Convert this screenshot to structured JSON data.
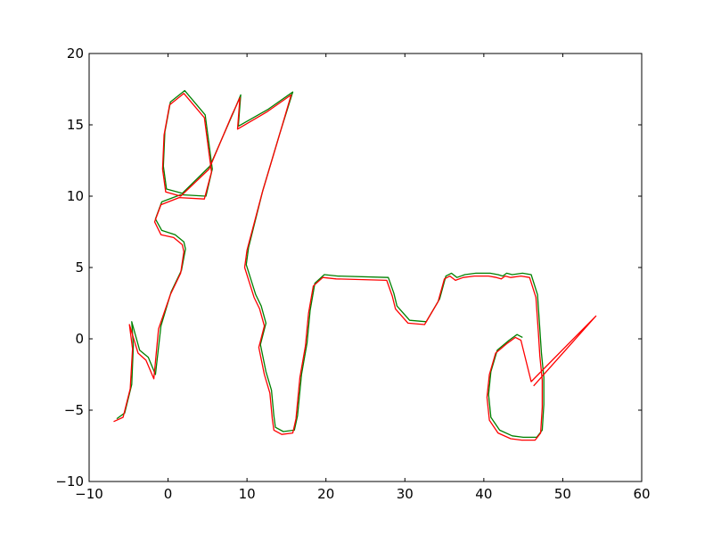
{
  "chart_data": {
    "type": "line",
    "xlim": [
      -10,
      60
    ],
    "ylim": [
      -10,
      20
    ],
    "x_ticks": [
      -10,
      0,
      10,
      20,
      30,
      40,
      50,
      60
    ],
    "y_ticks": [
      -10,
      -5,
      0,
      5,
      10,
      15,
      20
    ],
    "x_tick_labels": [
      "−10",
      "0",
      "10",
      "20",
      "30",
      "40",
      "50",
      "60"
    ],
    "y_tick_labels": [
      "−10",
      "−5",
      "0",
      "5",
      "10",
      "15",
      "20"
    ],
    "grid": false,
    "legend": "none",
    "series": [
      {
        "color": "#008000",
        "x": [
          -6.5,
          -5.5,
          -4.6,
          -4.4,
          -4.6,
          -3.6,
          -2.5,
          -1.6,
          -0.9,
          0.4,
          1.7,
          2.2,
          2.0,
          0.9,
          -0.8,
          -1.6,
          -0.8,
          1.6,
          4.8,
          5.6,
          4.7,
          2.1,
          0.3,
          -0.4,
          -0.6,
          -0.2,
          1.8,
          5.3,
          8.3,
          9.2,
          8.9,
          12.7,
          15.8,
          14.1,
          12.0,
          10.2,
          9.9,
          11.1,
          11.8,
          12.4,
          11.7,
          12.4,
          13.1,
          13.4,
          13.6,
          14.6,
          16.0,
          16.4,
          16.9,
          17.6,
          18.0,
          18.6,
          19.8,
          21.5,
          27.9,
          28.6,
          29.0,
          30.6,
          32.7,
          34.4,
          35.2,
          35.9,
          36.6,
          37.6,
          39.0,
          40.8,
          41.8,
          42.4,
          42.9,
          43.6,
          44.9,
          46.0,
          46.8,
          47.1,
          47.3,
          47.6,
          47.6,
          47.4,
          46.7,
          45.0,
          43.6,
          42.0,
          40.9,
          40.6,
          40.9,
          41.7,
          43.2,
          44.2,
          44.9
        ],
        "y": [
          -5.6,
          -5.2,
          -3.2,
          -0.5,
          1.2,
          -0.8,
          -1.3,
          -2.5,
          0.9,
          3.3,
          4.8,
          6.3,
          6.8,
          7.3,
          7.6,
          8.4,
          9.6,
          10.1,
          10.0,
          11.9,
          15.7,
          17.4,
          16.6,
          14.5,
          12.1,
          10.5,
          10.2,
          12.1,
          15.9,
          17.1,
          14.9,
          16.1,
          17.3,
          14.3,
          10.4,
          6.4,
          5.2,
          3.1,
          2.3,
          1.1,
          -0.4,
          -2.3,
          -3.6,
          -5.4,
          -6.2,
          -6.5,
          -6.4,
          -5.4,
          -2.5,
          -0.3,
          2.0,
          3.9,
          4.5,
          4.4,
          4.3,
          3.2,
          2.3,
          1.3,
          1.2,
          2.8,
          4.4,
          4.6,
          4.3,
          4.5,
          4.6,
          4.6,
          4.5,
          4.4,
          4.6,
          4.5,
          4.6,
          4.5,
          3.1,
          0.7,
          -1.0,
          -2.7,
          -4.6,
          -6.4,
          -6.9,
          -6.9,
          -6.8,
          -6.4,
          -5.5,
          -3.9,
          -2.3,
          -0.8,
          -0.1,
          0.3,
          0.1
        ]
      },
      {
        "color": "#ff0000",
        "x": [
          -6.9,
          -5.7,
          -4.8,
          -4.5,
          -4.9,
          -3.8,
          -2.8,
          -1.8,
          -1.2,
          0.3,
          1.6,
          2.0,
          1.8,
          0.7,
          -0.9,
          -1.7,
          -0.9,
          1.4,
          4.6,
          5.5,
          4.6,
          2.0,
          0.2,
          -0.5,
          -0.7,
          -0.3,
          1.6,
          5.2,
          8.1,
          9.1,
          8.8,
          12.5,
          15.6,
          14.0,
          11.9,
          10.0,
          9.7,
          10.9,
          11.6,
          12.2,
          11.5,
          12.2,
          12.9,
          13.2,
          13.4,
          14.4,
          15.8,
          16.2,
          16.7,
          17.4,
          17.8,
          18.4,
          19.6,
          21.3,
          27.7,
          28.4,
          28.8,
          30.4,
          32.5,
          34.2,
          35.0,
          35.7,
          36.4,
          37.4,
          38.8,
          40.6,
          41.6,
          42.2,
          42.7,
          43.4,
          44.7,
          45.8,
          46.6,
          46.9,
          47.1,
          47.4,
          47.4,
          47.2,
          46.5,
          44.8,
          43.4,
          41.8,
          40.7,
          40.4,
          40.7,
          41.5,
          43.0,
          44.0,
          44.7,
          46.0,
          54.2,
          46.3
        ],
        "y": [
          -5.8,
          -5.5,
          -3.5,
          -0.7,
          1.0,
          -1.0,
          -1.5,
          -2.8,
          0.7,
          3.1,
          4.6,
          6.1,
          6.6,
          7.1,
          7.3,
          8.2,
          9.4,
          9.9,
          9.8,
          11.7,
          15.5,
          17.2,
          16.4,
          14.3,
          11.9,
          10.3,
          10.0,
          11.9,
          15.7,
          16.9,
          14.7,
          15.9,
          17.1,
          14.1,
          10.2,
          6.2,
          5.0,
          2.9,
          2.1,
          0.9,
          -0.6,
          -2.5,
          -3.8,
          -5.6,
          -6.4,
          -6.7,
          -6.6,
          -5.6,
          -2.7,
          -0.5,
          1.8,
          3.7,
          4.3,
          4.2,
          4.1,
          3.0,
          2.1,
          1.1,
          1.0,
          2.6,
          4.2,
          4.4,
          4.1,
          4.3,
          4.4,
          4.4,
          4.3,
          4.2,
          4.4,
          4.3,
          4.4,
          4.3,
          2.9,
          0.5,
          -1.2,
          -2.9,
          -4.8,
          -6.6,
          -7.1,
          -7.1,
          -7.0,
          -6.6,
          -5.7,
          -4.1,
          -2.5,
          -1.0,
          -0.3,
          0.1,
          -0.1,
          -3.0,
          1.6,
          -3.3
        ]
      }
    ]
  }
}
